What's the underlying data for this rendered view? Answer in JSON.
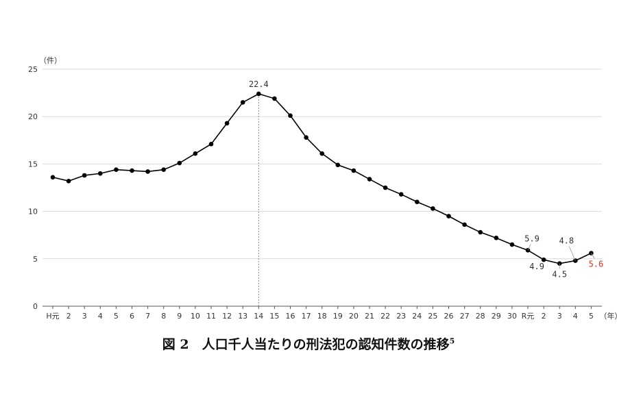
{
  "chart_data": {
    "type": "line",
    "title": "図 2　人口千人当たりの刑法犯の認知件数の推移",
    "title_footnote": "5",
    "y_unit": "（件）",
    "x_unit": "（年）",
    "ylim": [
      0,
      25
    ],
    "yticks": [
      "0",
      "5",
      "10",
      "15",
      "20",
      "25"
    ],
    "grid": true,
    "categories": [
      "H元",
      "2",
      "3",
      "4",
      "5",
      "6",
      "7",
      "8",
      "9",
      "10",
      "11",
      "12",
      "13",
      "14",
      "15",
      "16",
      "17",
      "18",
      "19",
      "20",
      "21",
      "22",
      "23",
      "24",
      "25",
      "26",
      "27",
      "28",
      "29",
      "30",
      "R元",
      "2",
      "3",
      "4",
      "5"
    ],
    "series": [
      {
        "values": [
          13.6,
          13.2,
          13.8,
          14.0,
          14.4,
          14.3,
          14.2,
          14.4,
          15.1,
          16.1,
          17.1,
          19.3,
          21.5,
          22.4,
          21.9,
          20.1,
          17.8,
          16.1,
          14.9,
          14.3,
          13.4,
          12.5,
          11.8,
          11.0,
          10.3,
          9.5,
          8.6,
          7.8,
          7.2,
          6.5,
          5.9,
          4.9,
          4.5,
          4.8,
          5.6
        ]
      }
    ],
    "annotations": [
      {
        "index": 13,
        "text": "22.4",
        "color": "#333333"
      },
      {
        "index": 30,
        "text": "5.9",
        "color": "#333333"
      },
      {
        "index": 31,
        "text": "4.9",
        "color": "#333333"
      },
      {
        "index": 32,
        "text": "4.5",
        "color": "#333333"
      },
      {
        "index": 33,
        "text": "4.8",
        "color": "#333333"
      },
      {
        "index": 34,
        "text": "5.6",
        "color": "#c0392b"
      }
    ],
    "reference_line_index": 13
  }
}
